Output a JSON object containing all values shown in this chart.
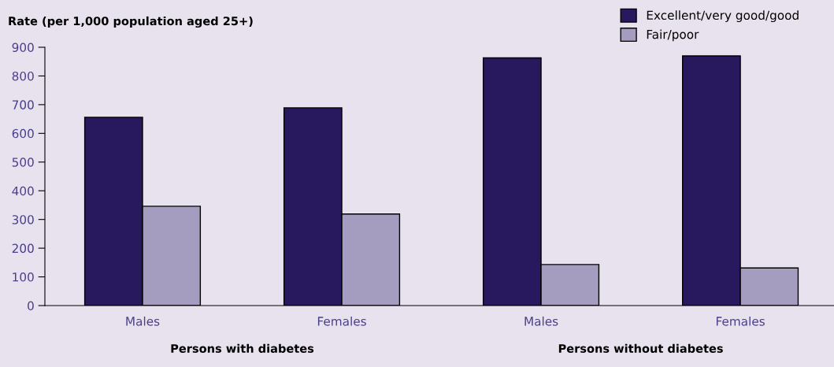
{
  "chart_data": {
    "type": "bar",
    "ylabel": "Rate (per 1,000 population aged 25+)",
    "categories": [
      "Males",
      "Females",
      "Males",
      "Females"
    ],
    "series": [
      {
        "name": "Excellent/very good/good",
        "color": "#28195e",
        "values": [
          656,
          689,
          863,
          870
        ]
      },
      {
        "name": "Fair/poor",
        "color": "#a59dbf",
        "values": [
          346,
          319,
          143,
          131
        ]
      }
    ],
    "ylim": [
      0,
      900
    ],
    "yticks": [
      0,
      100,
      200,
      300,
      400,
      500,
      600,
      700,
      800,
      900
    ],
    "grid": false,
    "legend": "top right",
    "annotations": [
      "Persons with diabetes",
      "Persons without diabetes"
    ]
  }
}
